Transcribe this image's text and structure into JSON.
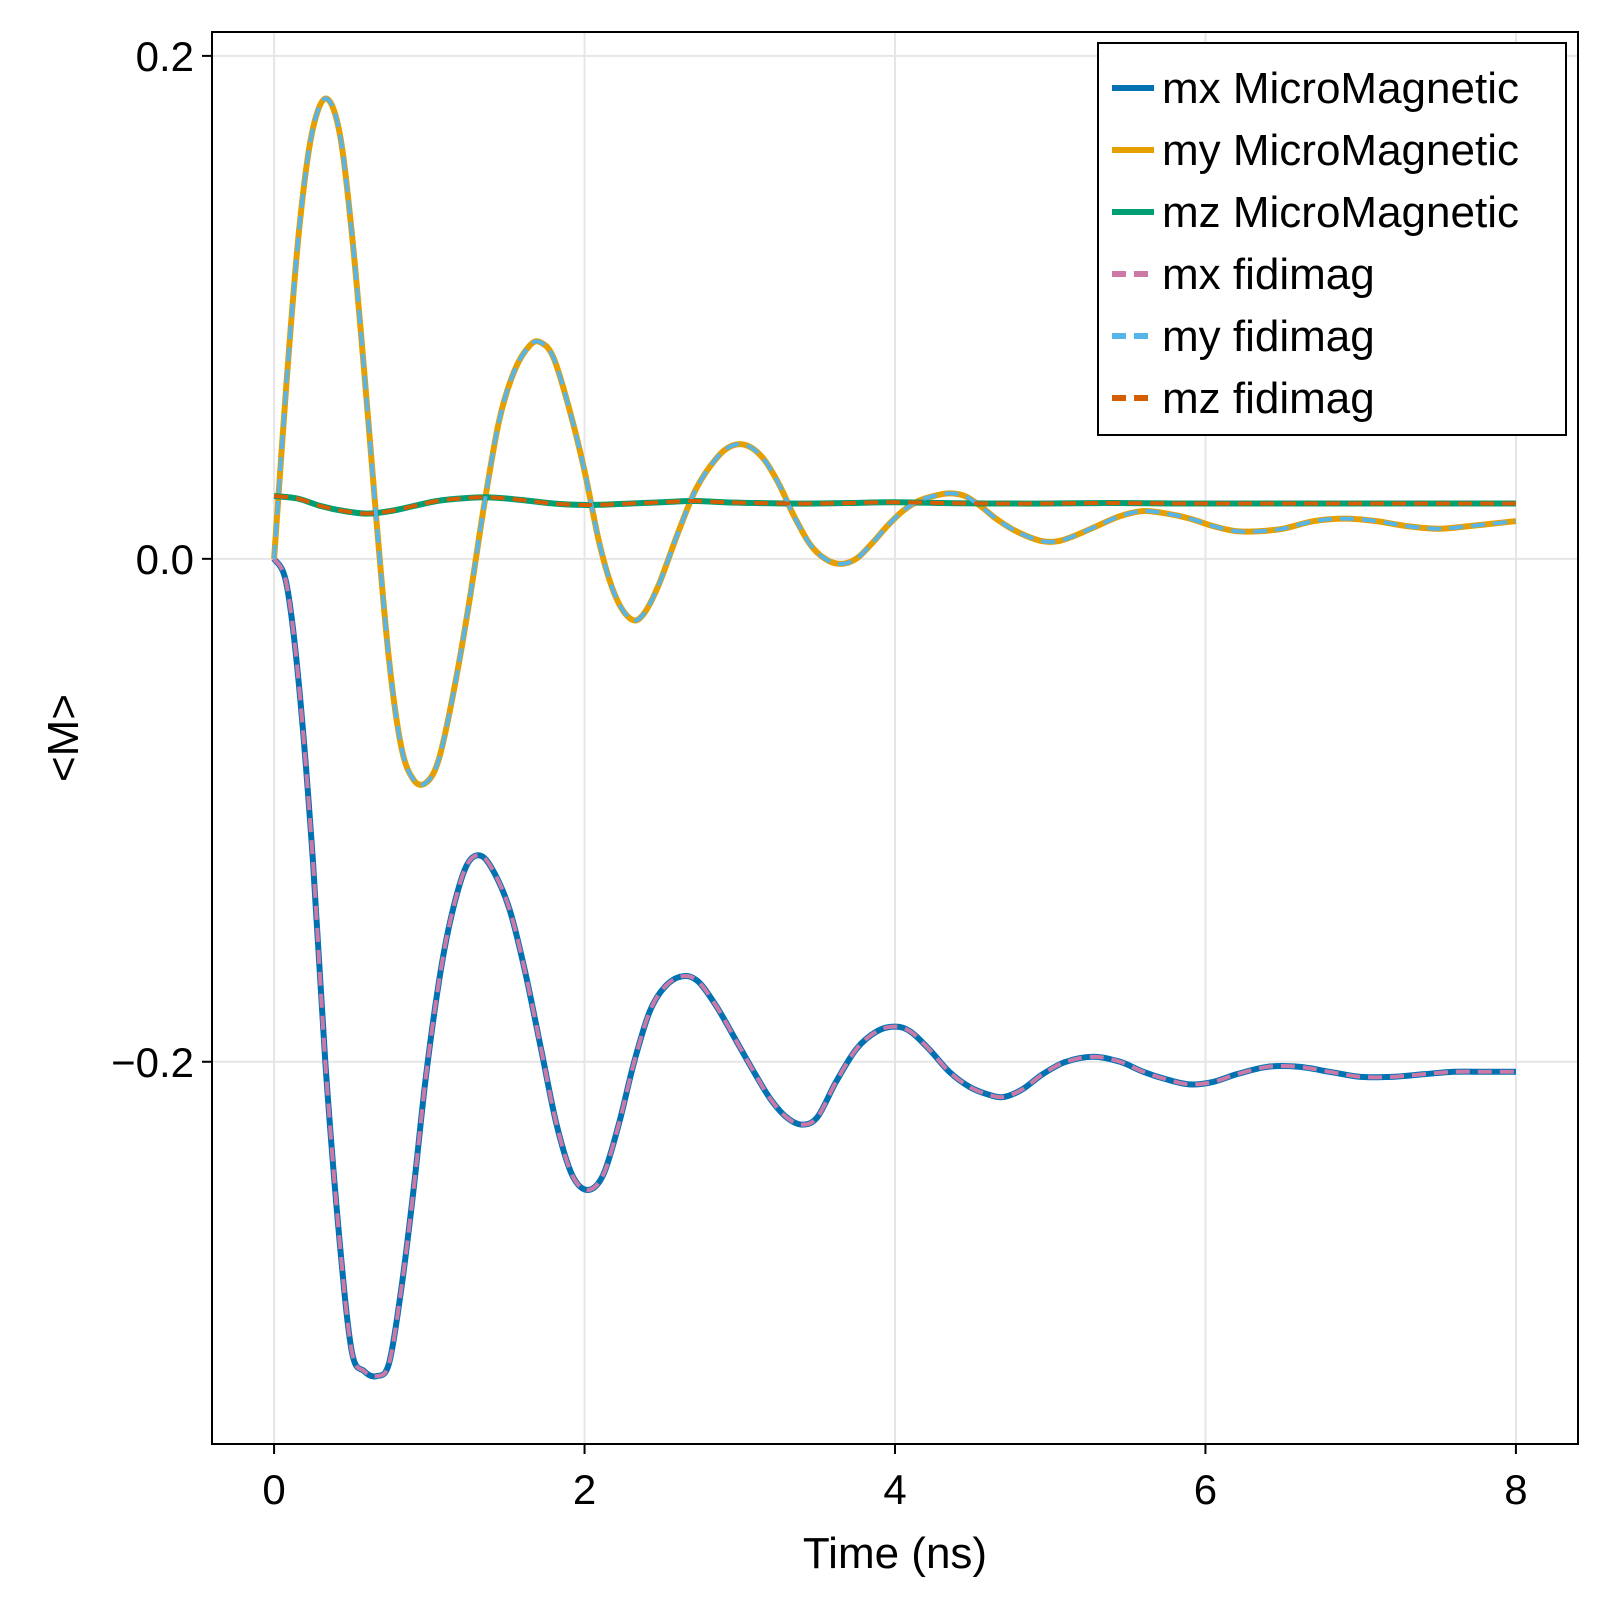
{
  "chart_data": {
    "type": "line",
    "title": "",
    "xlabel": "Time (ns)",
    "ylabel": "<M>",
    "xlim": [
      -0.4,
      8.4
    ],
    "ylim": [
      -0.352,
      0.2095
    ],
    "xticks": [
      0,
      2,
      4,
      6,
      8
    ],
    "xtick_labels": [
      "0",
      "2",
      "4",
      "6",
      "8"
    ],
    "yticks": [
      -0.2,
      0.0,
      0.2
    ],
    "ytick_labels": [
      "−0.2",
      "0.0",
      "0.2"
    ],
    "grid": true,
    "legend_position": "top-right",
    "series": [
      {
        "name": "mx MicroMagnetic",
        "color": "#0072B2",
        "style": "solid",
        "points": [
          [
            0,
            0
          ],
          [
            0.08,
            -0.01
          ],
          [
            0.16,
            -0.05
          ],
          [
            0.25,
            -0.12
          ],
          [
            0.33,
            -0.2
          ],
          [
            0.42,
            -0.27
          ],
          [
            0.5,
            -0.315
          ],
          [
            0.58,
            -0.323
          ],
          [
            0.66,
            -0.325
          ],
          [
            0.74,
            -0.32
          ],
          [
            0.82,
            -0.29
          ],
          [
            0.9,
            -0.25
          ],
          [
            0.98,
            -0.205
          ],
          [
            1.07,
            -0.165
          ],
          [
            1.15,
            -0.14
          ],
          [
            1.24,
            -0.122
          ],
          [
            1.33,
            -0.118
          ],
          [
            1.42,
            -0.125
          ],
          [
            1.52,
            -0.14
          ],
          [
            1.62,
            -0.165
          ],
          [
            1.72,
            -0.195
          ],
          [
            1.82,
            -0.225
          ],
          [
            1.92,
            -0.245
          ],
          [
            2.02,
            -0.251
          ],
          [
            2.12,
            -0.245
          ],
          [
            2.22,
            -0.225
          ],
          [
            2.32,
            -0.2
          ],
          [
            2.42,
            -0.18
          ],
          [
            2.52,
            -0.17
          ],
          [
            2.63,
            -0.166
          ],
          [
            2.73,
            -0.168
          ],
          [
            2.85,
            -0.178
          ],
          [
            2.98,
            -0.192
          ],
          [
            3.1,
            -0.205
          ],
          [
            3.2,
            -0.215
          ],
          [
            3.3,
            -0.222
          ],
          [
            3.4,
            -0.225
          ],
          [
            3.5,
            -0.222
          ],
          [
            3.62,
            -0.208
          ],
          [
            3.75,
            -0.195
          ],
          [
            3.88,
            -0.188
          ],
          [
            4.0,
            -0.186
          ],
          [
            4.1,
            -0.188
          ],
          [
            4.22,
            -0.195
          ],
          [
            4.35,
            -0.204
          ],
          [
            4.48,
            -0.21
          ],
          [
            4.6,
            -0.213
          ],
          [
            4.7,
            -0.214
          ],
          [
            4.82,
            -0.211
          ],
          [
            4.95,
            -0.205
          ],
          [
            5.1,
            -0.2
          ],
          [
            5.28,
            -0.198
          ],
          [
            5.45,
            -0.2
          ],
          [
            5.6,
            -0.204
          ],
          [
            5.75,
            -0.207
          ],
          [
            5.9,
            -0.209
          ],
          [
            6.05,
            -0.208
          ],
          [
            6.2,
            -0.205
          ],
          [
            6.4,
            -0.202
          ],
          [
            6.6,
            -0.202
          ],
          [
            6.8,
            -0.204
          ],
          [
            7.0,
            -0.206
          ],
          [
            7.2,
            -0.206
          ],
          [
            7.4,
            -0.205
          ],
          [
            7.6,
            -0.204
          ],
          [
            7.8,
            -0.204
          ],
          [
            8.0,
            -0.204
          ]
        ]
      },
      {
        "name": "my MicroMagnetic",
        "color": "#E69F00",
        "style": "solid",
        "points": [
          [
            0,
            0
          ],
          [
            0.08,
            0.07
          ],
          [
            0.16,
            0.13
          ],
          [
            0.24,
            0.168
          ],
          [
            0.33,
            0.183
          ],
          [
            0.42,
            0.17
          ],
          [
            0.5,
            0.13
          ],
          [
            0.58,
            0.075
          ],
          [
            0.66,
            0.015
          ],
          [
            0.74,
            -0.04
          ],
          [
            0.82,
            -0.075
          ],
          [
            0.9,
            -0.088
          ],
          [
            0.98,
            -0.089
          ],
          [
            1.06,
            -0.08
          ],
          [
            1.15,
            -0.055
          ],
          [
            1.25,
            -0.02
          ],
          [
            1.35,
            0.02
          ],
          [
            1.45,
            0.055
          ],
          [
            1.55,
            0.075
          ],
          [
            1.65,
            0.085
          ],
          [
            1.72,
            0.086
          ],
          [
            1.8,
            0.08
          ],
          [
            1.9,
            0.06
          ],
          [
            2.0,
            0.035
          ],
          [
            2.1,
            0.005
          ],
          [
            2.2,
            -0.015
          ],
          [
            2.3,
            -0.024
          ],
          [
            2.38,
            -0.022
          ],
          [
            2.48,
            -0.01
          ],
          [
            2.6,
            0.01
          ],
          [
            2.72,
            0.028
          ],
          [
            2.85,
            0.04
          ],
          [
            2.95,
            0.045
          ],
          [
            3.05,
            0.045
          ],
          [
            3.15,
            0.04
          ],
          [
            3.25,
            0.03
          ],
          [
            3.35,
            0.017
          ],
          [
            3.45,
            0.006
          ],
          [
            3.55,
            0.0
          ],
          [
            3.65,
            -0.002
          ],
          [
            3.75,
            0.0
          ],
          [
            3.85,
            0.006
          ],
          [
            3.95,
            0.013
          ],
          [
            4.05,
            0.019
          ],
          [
            4.15,
            0.023
          ],
          [
            4.25,
            0.025
          ],
          [
            4.35,
            0.026
          ],
          [
            4.45,
            0.025
          ],
          [
            4.55,
            0.021
          ],
          [
            4.65,
            0.016
          ],
          [
            4.75,
            0.012
          ],
          [
            4.85,
            0.009
          ],
          [
            4.95,
            0.007
          ],
          [
            5.05,
            0.007
          ],
          [
            5.15,
            0.009
          ],
          [
            5.3,
            0.013
          ],
          [
            5.45,
            0.017
          ],
          [
            5.6,
            0.019
          ],
          [
            5.75,
            0.018
          ],
          [
            5.9,
            0.016
          ],
          [
            6.05,
            0.013
          ],
          [
            6.2,
            0.011
          ],
          [
            6.35,
            0.011
          ],
          [
            6.5,
            0.012
          ],
          [
            6.7,
            0.015
          ],
          [
            6.9,
            0.016
          ],
          [
            7.1,
            0.015
          ],
          [
            7.3,
            0.013
          ],
          [
            7.5,
            0.012
          ],
          [
            7.7,
            0.013
          ],
          [
            7.85,
            0.014
          ],
          [
            8.0,
            0.015
          ]
        ]
      },
      {
        "name": "mz MicroMagnetic",
        "color": "#009E73",
        "style": "solid",
        "points": [
          [
            0,
            0.025
          ],
          [
            0.15,
            0.024
          ],
          [
            0.3,
            0.021
          ],
          [
            0.45,
            0.019
          ],
          [
            0.6,
            0.018
          ],
          [
            0.75,
            0.019
          ],
          [
            0.9,
            0.021
          ],
          [
            1.05,
            0.023
          ],
          [
            1.2,
            0.024
          ],
          [
            1.35,
            0.0245
          ],
          [
            1.5,
            0.024
          ],
          [
            1.65,
            0.023
          ],
          [
            1.8,
            0.022
          ],
          [
            1.95,
            0.0215
          ],
          [
            2.1,
            0.0215
          ],
          [
            2.3,
            0.022
          ],
          [
            2.5,
            0.0225
          ],
          [
            2.7,
            0.023
          ],
          [
            2.9,
            0.0225
          ],
          [
            3.1,
            0.0222
          ],
          [
            3.3,
            0.022
          ],
          [
            3.5,
            0.022
          ],
          [
            3.7,
            0.0222
          ],
          [
            4.0,
            0.0225
          ],
          [
            4.3,
            0.0222
          ],
          [
            4.6,
            0.022
          ],
          [
            5.0,
            0.022
          ],
          [
            5.4,
            0.0222
          ],
          [
            5.8,
            0.022
          ],
          [
            6.2,
            0.022
          ],
          [
            6.6,
            0.022
          ],
          [
            7.0,
            0.022
          ],
          [
            7.4,
            0.022
          ],
          [
            7.8,
            0.022
          ],
          [
            8.0,
            0.022
          ]
        ]
      },
      {
        "name": "mx fidimag",
        "color": "#CC79A7",
        "style": "dashed",
        "ref": 0
      },
      {
        "name": "my fidimag",
        "color": "#56B4E9",
        "style": "dashed",
        "ref": 1
      },
      {
        "name": "mz fidimag",
        "color": "#D55E00",
        "style": "dashed",
        "ref": 2
      }
    ]
  }
}
